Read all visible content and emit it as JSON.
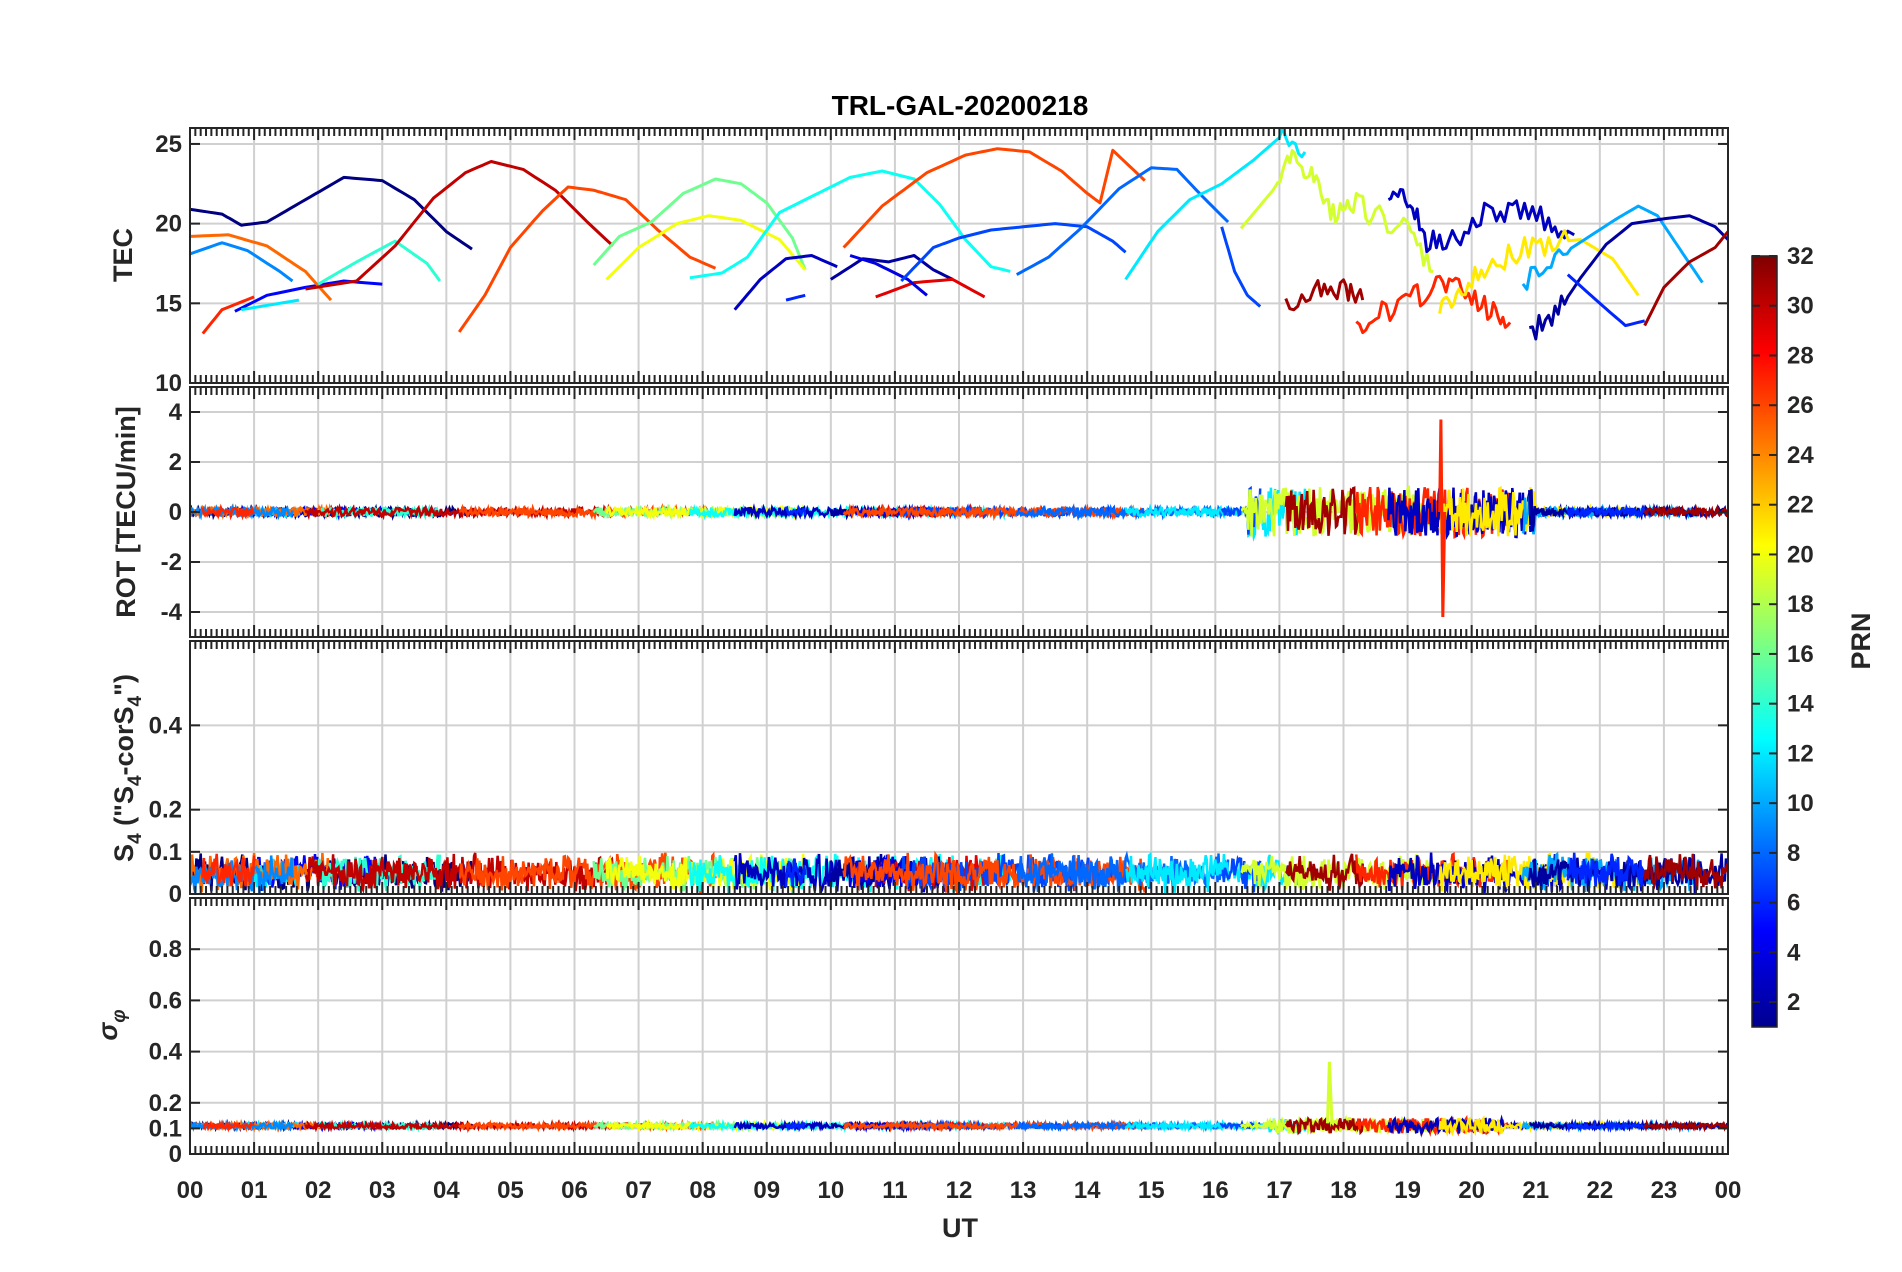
{
  "chart_data": {
    "type": "line",
    "title": "TRL-GAL-20200218",
    "xlabel": "UT",
    "x_tick_labels": [
      "00",
      "01",
      "02",
      "03",
      "04",
      "05",
      "06",
      "07",
      "08",
      "09",
      "10",
      "11",
      "12",
      "13",
      "14",
      "15",
      "16",
      "17",
      "18",
      "19",
      "20",
      "21",
      "22",
      "23",
      "00"
    ],
    "xlim": [
      0,
      24
    ],
    "grid": true,
    "panels": [
      {
        "id": "tec",
        "ylabel": "TEC",
        "ylim": [
          10,
          26
        ],
        "y_ticks": [
          "10",
          "15",
          "20",
          "25"
        ]
      },
      {
        "id": "rot",
        "ylabel": "ROT [TECU/min]",
        "ylim": [
          -5,
          5
        ],
        "y_ticks": [
          "-4",
          "-2",
          "0",
          "2",
          "4"
        ]
      },
      {
        "id": "s4",
        "ylabel_main": "S",
        "ylabel_sub": "4",
        "ylabel_mid": " (\"S",
        "ylabel_sub2": "4",
        "ylabel_mid2": "-corS",
        "ylabel_sub3": "4",
        "ylabel_end": "\")",
        "ylim": [
          0,
          0.6
        ],
        "y_ticks": [
          "0",
          "0.1",
          "0.2",
          "0.4"
        ]
      },
      {
        "id": "sigma",
        "ylabel_main": "σ",
        "ylabel_sub": "φ",
        "ylim": [
          0,
          1.0
        ],
        "y_ticks": [
          "0",
          "0.1",
          "0.2",
          "0.4",
          "0.6",
          "0.8"
        ]
      }
    ],
    "colorbar": {
      "label": "PRN",
      "range": [
        1,
        32
      ],
      "tick_labels": [
        "2",
        "4",
        "6",
        "8",
        "10",
        "12",
        "14",
        "16",
        "18",
        "20",
        "22",
        "24",
        "26",
        "28",
        "30",
        "32"
      ],
      "colormap": "jet"
    },
    "tec_series": [
      {
        "prn": 1,
        "points": [
          [
            0,
            20.9
          ],
          [
            0.5,
            20.6
          ],
          [
            0.8,
            19.9
          ],
          [
            1.2,
            20.1
          ],
          [
            1.8,
            21.5
          ],
          [
            2.4,
            22.9
          ],
          [
            3.0,
            22.7
          ],
          [
            3.5,
            21.5
          ],
          [
            4.0,
            19.5
          ],
          [
            4.4,
            18.4
          ]
        ]
      },
      {
        "prn": 5,
        "points": [
          [
            0.7,
            14.5
          ],
          [
            1.2,
            15.5
          ],
          [
            1.8,
            16.0
          ],
          [
            2.4,
            16.4
          ],
          [
            3.0,
            16.2
          ]
        ]
      },
      {
        "prn": 12,
        "points": [
          [
            0.8,
            14.6
          ],
          [
            1.4,
            15.0
          ],
          [
            1.7,
            15.2
          ]
        ]
      },
      {
        "prn": 25,
        "points": [
          [
            0,
            19.2
          ],
          [
            0.6,
            19.3
          ],
          [
            1.2,
            18.6
          ],
          [
            1.8,
            17.0
          ],
          [
            2.2,
            15.2
          ]
        ]
      },
      {
        "prn": 9,
        "points": [
          [
            0,
            18.1
          ],
          [
            0.5,
            18.8
          ],
          [
            0.9,
            18.3
          ],
          [
            1.4,
            17.0
          ],
          [
            1.6,
            16.4
          ]
        ]
      },
      {
        "prn": 27,
        "points": [
          [
            0.2,
            13.1
          ],
          [
            0.5,
            14.6
          ],
          [
            1.0,
            15.4
          ]
        ]
      },
      {
        "prn": 14,
        "points": [
          [
            2.0,
            16.2
          ],
          [
            2.6,
            17.6
          ],
          [
            3.2,
            18.9
          ],
          [
            3.7,
            17.5
          ],
          [
            3.9,
            16.4
          ]
        ]
      },
      {
        "prn": 30,
        "points": [
          [
            1.8,
            15.9
          ],
          [
            2.6,
            16.4
          ],
          [
            3.2,
            18.6
          ],
          [
            3.8,
            21.6
          ],
          [
            4.3,
            23.2
          ],
          [
            4.7,
            23.9
          ],
          [
            5.2,
            23.4
          ],
          [
            5.7,
            22.1
          ],
          [
            6.2,
            20.1
          ],
          [
            6.6,
            18.6
          ]
        ]
      },
      {
        "prn": 26,
        "points": [
          [
            4.2,
            13.2
          ],
          [
            4.6,
            15.5
          ],
          [
            5.0,
            18.5
          ],
          [
            5.5,
            20.8
          ],
          [
            5.9,
            22.3
          ],
          [
            6.3,
            22.1
          ],
          [
            6.8,
            21.5
          ],
          [
            7.3,
            19.6
          ],
          [
            7.8,
            17.9
          ],
          [
            8.2,
            17.2
          ]
        ]
      },
      {
        "prn": 16,
        "points": [
          [
            6.3,
            17.4
          ],
          [
            6.7,
            19.2
          ],
          [
            7.2,
            20.1
          ],
          [
            7.7,
            21.9
          ],
          [
            8.2,
            22.8
          ],
          [
            8.6,
            22.5
          ],
          [
            9.0,
            21.3
          ],
          [
            9.4,
            19.1
          ],
          [
            9.6,
            17.1
          ]
        ]
      },
      {
        "prn": 20,
        "points": [
          [
            6.5,
            16.5
          ],
          [
            7.0,
            18.5
          ],
          [
            7.6,
            20.0
          ],
          [
            8.1,
            20.5
          ],
          [
            8.6,
            20.2
          ],
          [
            9.2,
            19.0
          ],
          [
            9.6,
            17.1
          ]
        ]
      },
      {
        "prn": 13,
        "points": [
          [
            7.8,
            16.6
          ],
          [
            8.3,
            16.9
          ],
          [
            8.7,
            17.9
          ],
          [
            9.2,
            20.7
          ],
          [
            9.7,
            21.7
          ],
          [
            10.3,
            22.9
          ],
          [
            10.8,
            23.3
          ],
          [
            11.3,
            22.8
          ],
          [
            11.7,
            21.2
          ],
          [
            12.1,
            19.0
          ],
          [
            12.5,
            17.3
          ],
          [
            12.8,
            17.0
          ]
        ]
      },
      {
        "prn": 3,
        "points": [
          [
            8.5,
            14.6
          ],
          [
            8.9,
            16.5
          ],
          [
            9.3,
            17.8
          ],
          [
            9.7,
            18.0
          ],
          [
            10.1,
            17.3
          ]
        ]
      },
      {
        "prn": 6,
        "points": [
          [
            9.3,
            15.2
          ],
          [
            9.6,
            15.5
          ]
        ]
      },
      {
        "prn": 2,
        "points": [
          [
            10.0,
            16.5
          ],
          [
            10.5,
            17.8
          ],
          [
            10.9,
            17.6
          ],
          [
            11.3,
            18.0
          ],
          [
            11.6,
            17.1
          ],
          [
            11.9,
            16.5
          ]
        ]
      },
      {
        "prn": 29,
        "points": [
          [
            10.7,
            15.4
          ],
          [
            11.3,
            16.3
          ],
          [
            11.9,
            16.5
          ],
          [
            12.4,
            15.4
          ]
        ]
      },
      {
        "prn": 4,
        "points": [
          [
            10.3,
            18.0
          ],
          [
            10.7,
            17.5
          ],
          [
            11.2,
            16.5
          ],
          [
            11.5,
            15.5
          ]
        ]
      },
      {
        "prn": 7,
        "points": [
          [
            11.1,
            16.4
          ],
          [
            11.6,
            18.5
          ],
          [
            12.0,
            19.1
          ],
          [
            12.5,
            19.6
          ],
          [
            13.0,
            19.8
          ],
          [
            13.5,
            20.0
          ],
          [
            14.0,
            19.8
          ],
          [
            14.4,
            18.9
          ],
          [
            14.6,
            18.2
          ]
        ]
      },
      {
        "prn": 26,
        "points": [
          [
            10.2,
            18.5
          ],
          [
            10.8,
            21.1
          ],
          [
            11.5,
            23.2
          ],
          [
            12.1,
            24.3
          ],
          [
            12.6,
            24.7
          ],
          [
            13.1,
            24.5
          ],
          [
            13.6,
            23.3
          ],
          [
            14.0,
            21.9
          ],
          [
            14.2,
            21.3
          ],
          [
            14.4,
            24.6
          ],
          [
            14.9,
            22.7
          ]
        ]
      },
      {
        "prn": 8,
        "points": [
          [
            12.9,
            16.8
          ],
          [
            13.4,
            17.9
          ],
          [
            13.9,
            19.7
          ],
          [
            14.5,
            22.2
          ],
          [
            15.0,
            23.5
          ],
          [
            15.4,
            23.4
          ],
          [
            15.8,
            21.7
          ],
          [
            16.2,
            20.1
          ]
        ]
      },
      {
        "prn": 12,
        "points": [
          [
            14.6,
            16.5
          ],
          [
            15.1,
            19.5
          ],
          [
            15.6,
            21.5
          ],
          [
            16.1,
            22.5
          ],
          [
            16.6,
            24.0
          ],
          [
            17.0,
            25.4
          ],
          [
            17.4,
            24.5
          ]
        ]
      },
      {
        "prn": 7,
        "points": [
          [
            16.1,
            19.8
          ],
          [
            16.3,
            17.0
          ],
          [
            16.5,
            15.5
          ],
          [
            16.7,
            14.8
          ]
        ]
      },
      {
        "prn": 19,
        "points": [
          [
            16.4,
            19.7
          ],
          [
            16.9,
            22.1
          ],
          [
            17.2,
            24.0
          ],
          [
            17.5,
            23.0
          ],
          [
            17.8,
            20.5
          ],
          [
            18.1,
            21.6
          ],
          [
            18.5,
            20.5
          ],
          [
            19.0,
            19.5
          ],
          [
            19.4,
            17.0
          ]
        ]
      },
      {
        "prn": 31,
        "points": [
          [
            17.1,
            15.1
          ],
          [
            17.6,
            16.0
          ],
          [
            18.0,
            15.8
          ],
          [
            18.3,
            15.2
          ]
        ]
      },
      {
        "prn": 27,
        "points": [
          [
            18.2,
            13.3
          ],
          [
            18.6,
            14.3
          ],
          [
            19.1,
            15.3
          ],
          [
            19.5,
            16.5
          ],
          [
            19.9,
            15.7
          ],
          [
            20.3,
            14.6
          ],
          [
            20.6,
            13.8
          ]
        ]
      },
      {
        "prn": 3,
        "points": [
          [
            18.7,
            22.2
          ],
          [
            19.0,
            21.5
          ],
          [
            19.3,
            19.0
          ],
          [
            19.7,
            19.0
          ],
          [
            20.2,
            20.5
          ],
          [
            20.7,
            20.9
          ],
          [
            21.2,
            20.2
          ],
          [
            21.6,
            19.3
          ]
        ]
      },
      {
        "prn": 21,
        "points": [
          [
            19.5,
            14.7
          ],
          [
            19.8,
            16.0
          ],
          [
            20.2,
            17.3
          ],
          [
            20.7,
            18.2
          ],
          [
            21.2,
            18.8
          ],
          [
            21.7,
            19.0
          ],
          [
            22.2,
            17.8
          ],
          [
            22.6,
            15.5
          ]
        ]
      },
      {
        "prn": 10,
        "points": [
          [
            20.8,
            16.2
          ],
          [
            21.3,
            17.8
          ],
          [
            21.8,
            19.1
          ],
          [
            22.3,
            20.4
          ],
          [
            22.6,
            21.1
          ],
          [
            22.9,
            20.5
          ],
          [
            23.2,
            18.7
          ],
          [
            23.6,
            16.3
          ]
        ]
      },
      {
        "prn": 2,
        "points": [
          [
            20.9,
            13.1
          ],
          [
            21.3,
            14.2
          ],
          [
            21.7,
            16.6
          ],
          [
            22.1,
            18.7
          ],
          [
            22.5,
            20.0
          ],
          [
            23.0,
            20.3
          ],
          [
            23.4,
            20.5
          ],
          [
            23.8,
            19.8
          ],
          [
            24.0,
            19.0
          ]
        ]
      },
      {
        "prn": 6,
        "points": [
          [
            21.5,
            16.8
          ],
          [
            22.0,
            15.0
          ],
          [
            22.4,
            13.6
          ],
          [
            22.7,
            13.9
          ]
        ]
      },
      {
        "prn": 31,
        "points": [
          [
            22.7,
            13.6
          ],
          [
            23.0,
            16.0
          ],
          [
            23.4,
            17.6
          ],
          [
            23.8,
            18.5
          ],
          [
            24.0,
            19.5
          ]
        ]
      }
    ]
  }
}
